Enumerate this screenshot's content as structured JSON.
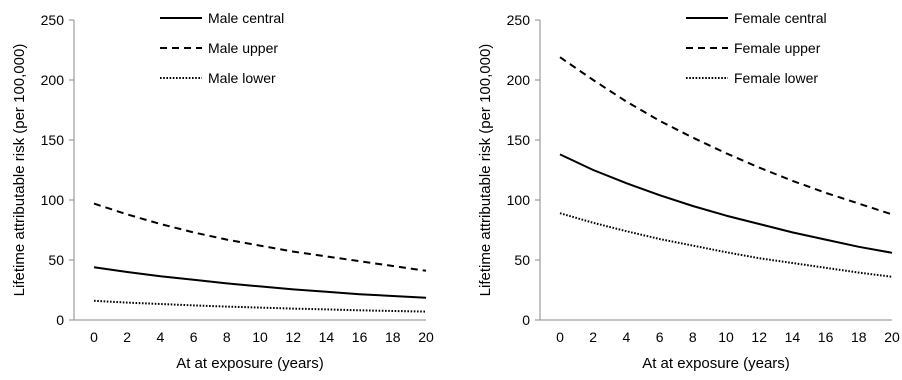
{
  "chart_data": [
    {
      "type": "line",
      "xlabel": "At at exposure (years)",
      "ylabel": "Lifetime attributable risk (per 100,000)",
      "ylim": [
        0,
        250
      ],
      "xlim": [
        0,
        20
      ],
      "yticks": [
        0,
        50,
        100,
        150,
        200,
        250
      ],
      "xticks": [
        0,
        2,
        4,
        6,
        8,
        10,
        12,
        14,
        16,
        18,
        20
      ],
      "grid": false,
      "legend_position": "top-center",
      "x": [
        0,
        2,
        4,
        6,
        8,
        10,
        12,
        14,
        16,
        18,
        20
      ],
      "series": [
        {
          "name": "Male central",
          "style": "solid",
          "values": [
            44,
            40,
            36.5,
            33.5,
            30.5,
            28,
            25.5,
            23.5,
            21.5,
            20,
            18.5
          ]
        },
        {
          "name": "Male upper",
          "style": "dashed",
          "values": [
            97,
            88,
            80,
            73,
            67,
            62,
            57,
            53,
            49,
            45,
            41
          ]
        },
        {
          "name": "Male lower",
          "style": "dotted",
          "values": [
            16,
            14.5,
            13.3,
            12.2,
            11.2,
            10.3,
            9.5,
            8.8,
            8.1,
            7.5,
            7
          ]
        }
      ]
    },
    {
      "type": "line",
      "xlabel": "At at exposure (years)",
      "ylabel": "Lifetime attributable risk (per 100,000)",
      "ylim": [
        0,
        250
      ],
      "xlim": [
        0,
        20
      ],
      "yticks": [
        0,
        50,
        100,
        150,
        200,
        250
      ],
      "xticks": [
        0,
        2,
        4,
        6,
        8,
        10,
        12,
        14,
        16,
        18,
        20
      ],
      "grid": false,
      "legend_position": "top-center",
      "x": [
        0,
        2,
        4,
        6,
        8,
        10,
        12,
        14,
        16,
        18,
        20
      ],
      "series": [
        {
          "name": "Female central",
          "style": "solid",
          "values": [
            138,
            125,
            114,
            104,
            95,
            87,
            80,
            73,
            67,
            61,
            56
          ]
        },
        {
          "name": "Female upper",
          "style": "dashed",
          "values": [
            219,
            200,
            182,
            166,
            152,
            139,
            127,
            116,
            106,
            97,
            88
          ]
        },
        {
          "name": "Female lower",
          "style": "dotted",
          "values": [
            89,
            81,
            74,
            67.5,
            62,
            56.5,
            51.5,
            47.5,
            43.5,
            39.5,
            36
          ]
        }
      ]
    }
  ]
}
